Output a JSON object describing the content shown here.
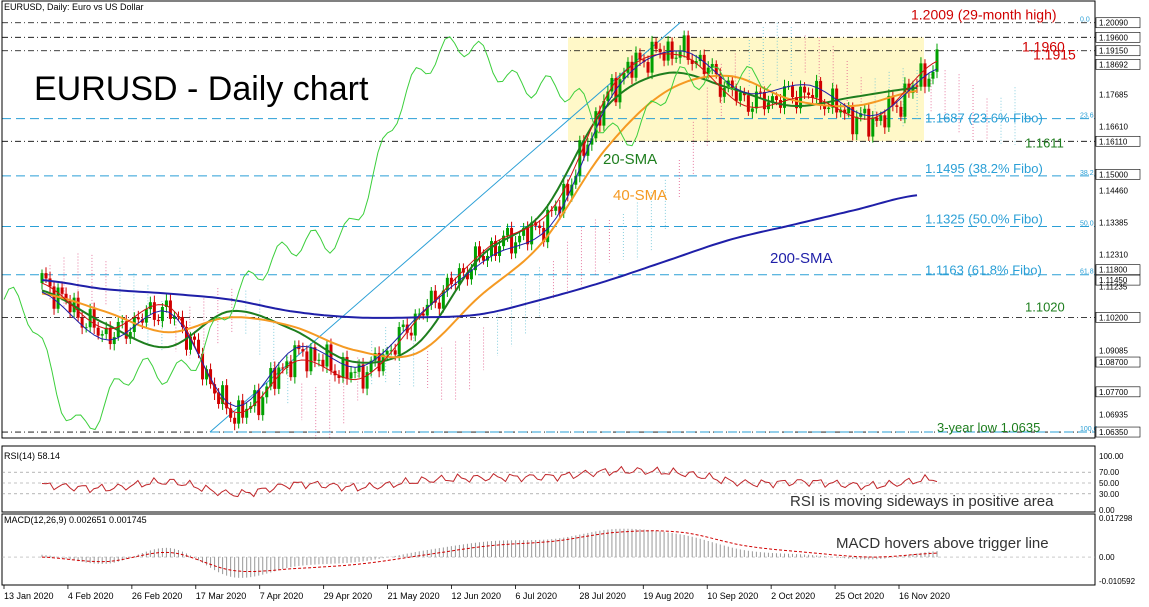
{
  "window": {
    "header": "EURUSD, Daily: Euro vs US Dollar",
    "rsi_header": "RSI(14) 58.14",
    "macd_header": "MACD(12,26,9) 0.002651 0.001745"
  },
  "colors": {
    "candle_up": "#00a000",
    "candle_down": "#d00000",
    "sma20": "#1e7e1e",
    "sma40": "#f59a23",
    "sma200": "#1f1fa8",
    "tenkan": "#d01010",
    "kijun": "#1f1fa8",
    "chikou": "#3ccf3c",
    "cloud_bear": "#e05a8a",
    "cloud_bull": "#69c3d6",
    "fibo": "#2a9fd6",
    "level_line": "#000000",
    "highlight": "#fff8c8",
    "red_label": "#d00000",
    "rsi_line": "#c0262a",
    "macd_hist": "#999999",
    "macd_signal": "#d00000"
  },
  "chart_data": [
    {
      "type": "line",
      "title": "EURUSD - Daily chart",
      "x": [
        "13 Jan 2020",
        "4 Feb 2020",
        "26 Feb 2020",
        "17 Mar 2020",
        "7 Apr 2020",
        "29 Apr 2020",
        "21 May 2020",
        "12 Jun 2020",
        "6 Jul 2020",
        "28 Jul 2020",
        "19 Aug 2020",
        "10 Sep 2020",
        "2 Oct 2020",
        "25 Oct 2020",
        "16 Nov 2020"
      ],
      "yticks": [
        "1.20090",
        "1.19600",
        "1.19150",
        "1.18692",
        "1.17685",
        "1.16610",
        "1.16110",
        "1.15000",
        "1.14460",
        "1.13385",
        "1.12310",
        "1.11800",
        "1.11450",
        "1.11235",
        "1.10200",
        "1.09085",
        "1.08700",
        "1.07700",
        "1.06935",
        "1.06350"
      ],
      "ylim": [
        1.0615,
        1.2045
      ],
      "series": [
        {
          "name": "20-SMA",
          "values": [
            1.111,
            1.1,
            1.092,
            1.104,
            1.098,
            1.087,
            1.093,
            1.122,
            1.137,
            1.172,
            1.184,
            1.179,
            1.173,
            1.176,
            1.179
          ]
        },
        {
          "name": "40-SMA",
          "values": [
            1.11,
            1.104,
            1.097,
            1.102,
            1.099,
            1.091,
            1.09,
            1.109,
            1.127,
            1.158,
            1.178,
            1.183,
            1.175,
            1.173,
            1.178
          ]
        },
        {
          "name": "200-SMA",
          "values": [
            1.1145,
            1.1115,
            1.11,
            1.108,
            1.104,
            1.102,
            1.102,
            1.103,
            1.108,
            1.114,
            1.121,
            1.128,
            1.133,
            1.138,
            1.143
          ]
        },
        {
          "name": "Price",
          "values": [
            1.1135,
            1.0965,
            1.1035,
            1.07,
            1.089,
            1.0835,
            1.105,
            1.1245,
            1.137,
            1.181,
            1.191,
            1.175,
            1.177,
            1.168,
            1.186
          ]
        }
      ],
      "annotations": [
        {
          "text": "1.2009 (29-month high)",
          "y": 1.2009,
          "color": "red"
        },
        {
          "text": "1.1960",
          "y": 1.196,
          "color": "red"
        },
        {
          "text": "1.1915",
          "y": 1.1915,
          "color": "red"
        },
        {
          "text": "1.1687 (23.6% Fibo)",
          "y": 1.1687,
          "color": "fibo"
        },
        {
          "text": "1.1611",
          "y": 1.1611,
          "color": "green"
        },
        {
          "text": "1.1495 (38.2% Fibo)",
          "y": 1.1495,
          "color": "fibo"
        },
        {
          "text": "1.1325 (50.0% Fibo)",
          "y": 1.1325,
          "color": "fibo"
        },
        {
          "text": "1.1163 (61.8% Fibo)",
          "y": 1.1163,
          "color": "fibo"
        },
        {
          "text": "1.1020",
          "y": 1.102,
          "color": "green"
        },
        {
          "text": "3-year low 1.0635",
          "y": 1.0635,
          "color": "green"
        }
      ],
      "series_labels": [
        "20-SMA",
        "40-SMA",
        "200-SMA"
      ],
      "fibo_pct": [
        "0.0",
        "23.6",
        "38.2",
        "50.0",
        "61.8",
        "100.0"
      ],
      "highlight_range": [
        1.1611,
        1.196
      ]
    },
    {
      "type": "line",
      "title": "RSI(14) 58.14",
      "yticks": [
        "100.00",
        "70.00",
        "50.00",
        "30.00",
        "0.00"
      ],
      "ylim": [
        0,
        100
      ],
      "series": [
        {
          "name": "RSI(14)",
          "values": [
            46,
            40,
            52,
            30,
            48,
            42,
            55,
            60,
            62,
            72,
            68,
            50,
            52,
            45,
            58.14
          ]
        }
      ],
      "annotation": "RSI is moving sideways in positive area"
    },
    {
      "type": "bar",
      "title": "MACD(12,26,9) 0.002651 0.001745",
      "yticks": [
        "0.017298",
        "0.00",
        "-0.010592"
      ],
      "ylim": [
        -0.0106,
        0.0173
      ],
      "series": [
        {
          "name": "MACD",
          "values": [
            0.001,
            -0.003,
            0.004,
            -0.009,
            -0.004,
            -0.002,
            0.003,
            0.007,
            0.008,
            0.0125,
            0.01,
            0.003,
            0.001,
            -0.001,
            0.002651
          ]
        },
        {
          "name": "Signal",
          "values": [
            0.0,
            -0.002,
            0.002,
            -0.006,
            -0.005,
            -0.003,
            0.001,
            0.005,
            0.007,
            0.011,
            0.011,
            0.005,
            0.002,
            0.0,
            0.001745
          ]
        }
      ],
      "annotation": "MACD hovers above trigger line"
    }
  ]
}
